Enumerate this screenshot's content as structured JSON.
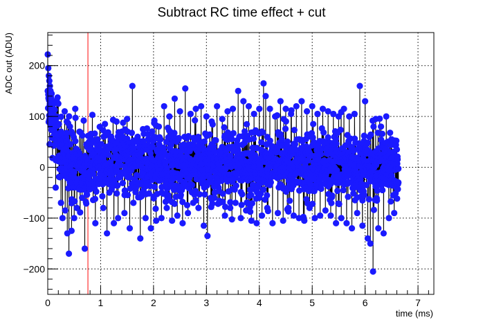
{
  "chart_data": {
    "type": "scatter",
    "title": "Subtract RC time effect + cut",
    "xlabel": "time (ms)",
    "ylabel": "ADC out (ADU)",
    "xlim": [
      0,
      7.3
    ],
    "ylim": [
      -250,
      265
    ],
    "x_ticks": [
      0,
      1,
      2,
      3,
      4,
      5,
      6,
      7
    ],
    "y_ticks": [
      -200,
      -100,
      0,
      100,
      200
    ],
    "grid": true,
    "marker_color": "#1a1aff",
    "line_color": "#000000",
    "cut_line": {
      "x": 0.76,
      "color": "#ff5a5a"
    },
    "x_range_of_points": [
      0,
      6.63
    ],
    "series": [
      {
        "points": [
          [
            0.0,
            222
          ],
          [
            0.01,
            195
          ],
          [
            0.02,
            180
          ],
          [
            0.03,
            170
          ],
          [
            0.04,
            160
          ],
          [
            0.05,
            150
          ],
          [
            0.06,
            138
          ],
          [
            0.08,
            120
          ],
          [
            0.1,
            105
          ],
          [
            0.12,
            95
          ],
          [
            0.15,
            80
          ],
          [
            0.18,
            65
          ],
          [
            0.2,
            55
          ],
          [
            0.23,
            40
          ],
          [
            0.27,
            20
          ],
          [
            0.3,
            10
          ],
          [
            0.35,
            0
          ],
          [
            0.4,
            -10
          ],
          [
            0.45,
            -15
          ],
          [
            0.5,
            -20
          ],
          [
            0.55,
            -30
          ],
          [
            0.6,
            -40
          ],
          [
            0.65,
            -35
          ],
          [
            0.7,
            -40
          ],
          [
            0.72,
            -20
          ],
          [
            0.75,
            -30
          ],
          [
            0.05,
            100
          ],
          [
            0.1,
            60
          ],
          [
            0.15,
            -40
          ],
          [
            0.17,
            130
          ],
          [
            0.21,
            85
          ],
          [
            0.25,
            -70
          ],
          [
            0.28,
            -100
          ],
          [
            0.32,
            110
          ],
          [
            0.33,
            -85
          ],
          [
            0.36,
            90
          ],
          [
            0.37,
            -130
          ],
          [
            0.4,
            -170
          ],
          [
            0.42,
            80
          ],
          [
            0.45,
            -125
          ],
          [
            0.47,
            65
          ],
          [
            0.5,
            -100
          ],
          [
            0.52,
            115
          ],
          [
            0.55,
            -80
          ],
          [
            0.6,
            70
          ],
          [
            0.65,
            -60
          ],
          [
            0.68,
            92
          ],
          [
            0.7,
            -160
          ],
          [
            0.73,
            45
          ],
          [
            0.78,
            50
          ],
          [
            0.9,
            -110
          ],
          [
            0.94,
            55
          ],
          [
            1.0,
            45
          ],
          [
            1.05,
            -80
          ],
          [
            1.1,
            40
          ],
          [
            1.12,
            -130
          ],
          [
            1.2,
            60
          ],
          [
            1.25,
            -110
          ],
          [
            1.3,
            90
          ],
          [
            1.33,
            -100
          ],
          [
            1.4,
            70
          ],
          [
            1.45,
            -90
          ],
          [
            1.5,
            95
          ],
          [
            1.55,
            -120
          ],
          [
            1.6,
            160
          ],
          [
            1.62,
            -70
          ],
          [
            1.7,
            60
          ],
          [
            1.75,
            -140
          ],
          [
            1.8,
            75
          ],
          [
            1.85,
            -100
          ],
          [
            1.9,
            65
          ],
          [
            1.95,
            -120
          ],
          [
            2.0,
            60
          ],
          [
            2.05,
            -105
          ],
          [
            2.1,
            80
          ],
          [
            2.15,
            -100
          ],
          [
            2.2,
            120
          ],
          [
            2.25,
            -80
          ],
          [
            2.3,
            100
          ],
          [
            2.35,
            -105
          ],
          [
            2.4,
            135
          ],
          [
            2.45,
            -95
          ],
          [
            2.5,
            110
          ],
          [
            2.55,
            -110
          ],
          [
            2.6,
            155
          ],
          [
            2.65,
            -90
          ],
          [
            2.7,
            105
          ],
          [
            2.75,
            -70
          ],
          [
            2.8,
            115
          ],
          [
            2.85,
            -80
          ],
          [
            2.9,
            120
          ],
          [
            2.95,
            -115
          ],
          [
            3.0,
            100
          ],
          [
            3.02,
            -135
          ],
          [
            3.1,
            90
          ],
          [
            3.15,
            -60
          ],
          [
            3.2,
            120
          ],
          [
            3.25,
            -70
          ],
          [
            3.3,
            95
          ],
          [
            3.35,
            -95
          ],
          [
            3.4,
            110
          ],
          [
            3.45,
            -80
          ],
          [
            3.5,
            115
          ],
          [
            3.55,
            -70
          ],
          [
            3.6,
            150
          ],
          [
            3.65,
            -100
          ],
          [
            3.7,
            130
          ],
          [
            3.75,
            -85
          ],
          [
            3.8,
            120
          ],
          [
            3.85,
            -105
          ],
          [
            3.9,
            105
          ],
          [
            3.95,
            -110
          ],
          [
            4.0,
            115
          ],
          [
            4.05,
            -95
          ],
          [
            4.08,
            165
          ],
          [
            4.12,
            140
          ],
          [
            4.15,
            -80
          ],
          [
            4.2,
            115
          ],
          [
            4.25,
            -110
          ],
          [
            4.3,
            100
          ],
          [
            4.35,
            -90
          ],
          [
            4.4,
            130
          ],
          [
            4.45,
            -105
          ],
          [
            4.5,
            115
          ],
          [
            4.55,
            -80
          ],
          [
            4.6,
            105
          ],
          [
            4.65,
            -95
          ],
          [
            4.7,
            120
          ],
          [
            4.75,
            -100
          ],
          [
            4.8,
            130
          ],
          [
            4.85,
            -105
          ],
          [
            4.9,
            110
          ],
          [
            4.95,
            -80
          ],
          [
            5.0,
            120
          ],
          [
            5.05,
            -100
          ],
          [
            5.1,
            105
          ],
          [
            5.15,
            -95
          ],
          [
            5.2,
            115
          ],
          [
            5.25,
            -85
          ],
          [
            5.3,
            110
          ],
          [
            5.35,
            -95
          ],
          [
            5.4,
            105
          ],
          [
            5.45,
            -110
          ],
          [
            5.5,
            100
          ],
          [
            5.55,
            -100
          ],
          [
            5.6,
            115
          ],
          [
            5.65,
            -110
          ],
          [
            5.7,
            100
          ],
          [
            5.75,
            -120
          ],
          [
            5.8,
            105
          ],
          [
            5.85,
            -90
          ],
          [
            5.9,
            160
          ],
          [
            5.95,
            -115
          ],
          [
            6.0,
            130
          ],
          [
            6.05,
            -140
          ],
          [
            6.08,
            60
          ],
          [
            6.1,
            -150
          ],
          [
            6.15,
            -205
          ],
          [
            6.2,
            95
          ],
          [
            6.25,
            -120
          ],
          [
            6.3,
            80
          ],
          [
            6.35,
            -130
          ],
          [
            6.4,
            100
          ],
          [
            6.45,
            -100
          ],
          [
            6.5,
            55
          ],
          [
            6.55,
            -90
          ],
          [
            6.6,
            35
          ],
          [
            6.63,
            -30
          ]
        ]
      }
    ]
  }
}
